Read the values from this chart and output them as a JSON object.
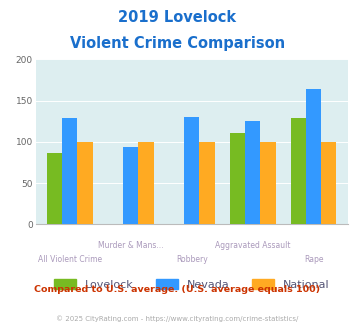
{
  "title_line1": "2019 Lovelock",
  "title_line2": "Violent Crime Comparison",
  "lovelock": [
    87,
    0,
    0,
    111,
    129
  ],
  "nevada": [
    129,
    94,
    130,
    125,
    164
  ],
  "national": [
    100,
    100,
    100,
    100,
    100
  ],
  "color_lovelock": "#77bb22",
  "color_nevada": "#3399ff",
  "color_national": "#ffaa22",
  "ylim": [
    0,
    200
  ],
  "yticks": [
    0,
    50,
    100,
    150,
    200
  ],
  "bg_color": "#ddeef0",
  "title_color": "#1a6fcc",
  "top_labels": [
    "",
    "Murder & Mans...",
    "",
    "Aggravated Assault",
    ""
  ],
  "bot_labels": [
    "All Violent Crime",
    "",
    "Robbery",
    "",
    "Rape"
  ],
  "label_color": "#aa99bb",
  "footer_text": "Compared to U.S. average. (U.S. average equals 100)",
  "footer_color": "#cc3300",
  "copyright_text": "© 2025 CityRating.com - https://www.cityrating.com/crime-statistics/",
  "copyright_color": "#aaaaaa",
  "legend_labels": [
    "Lovelock",
    "Nevada",
    "National"
  ],
  "legend_label_color": "#555577"
}
